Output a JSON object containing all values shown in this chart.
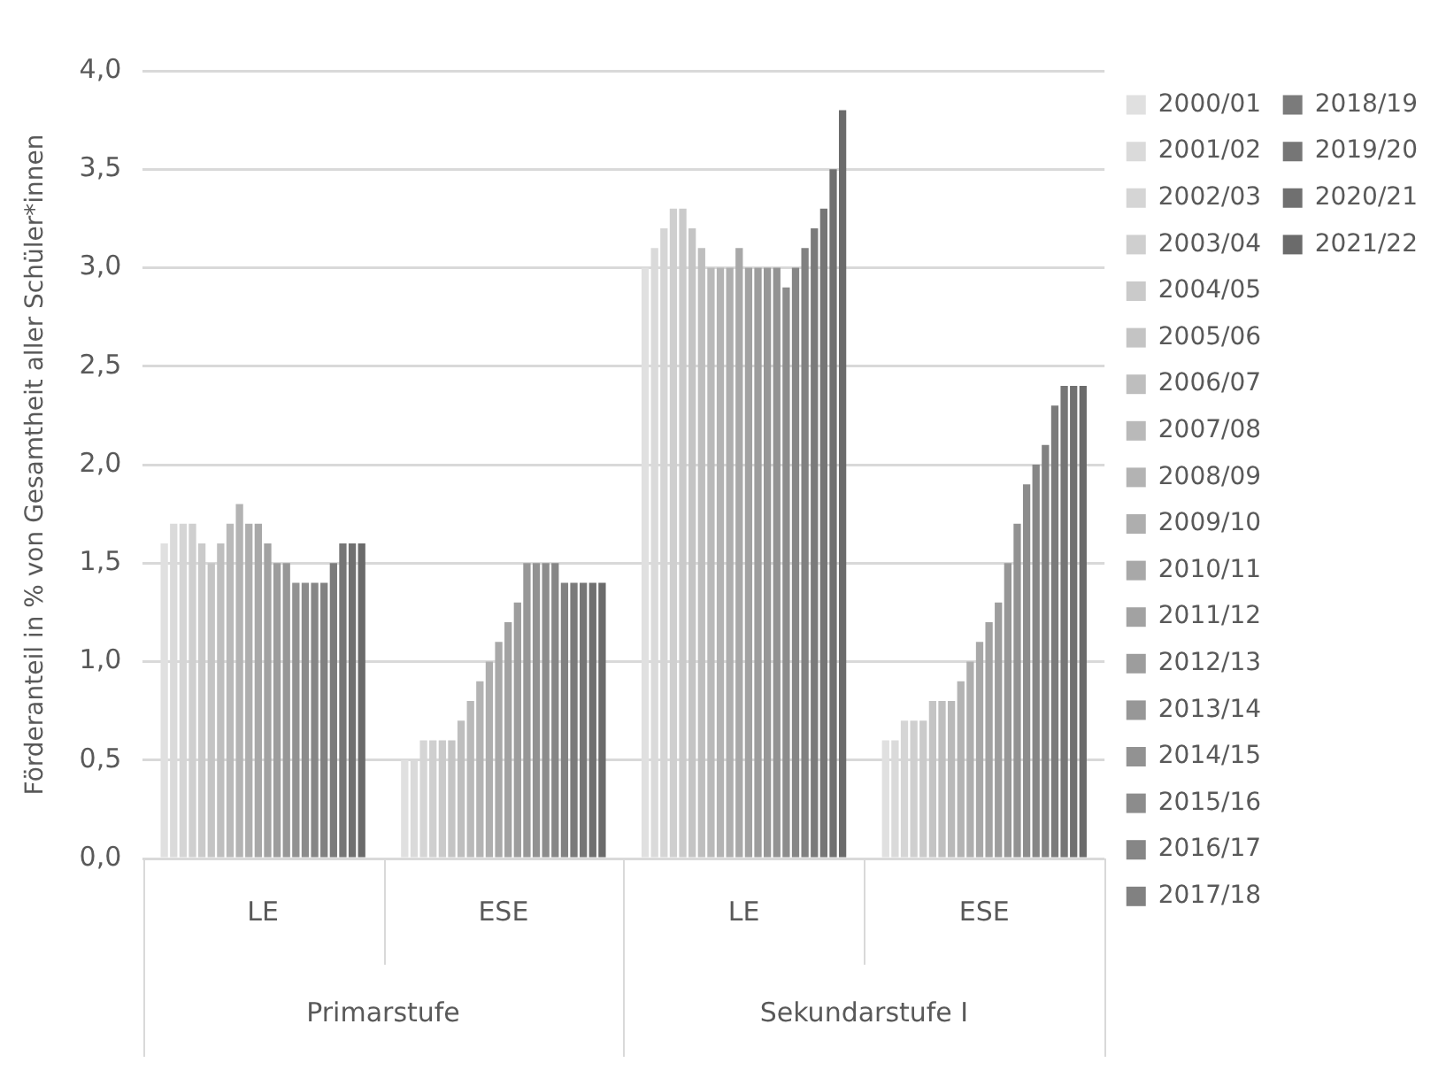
{
  "chart_data": {
    "type": "bar",
    "ylabel": "Förderanteil in % von Gesamtheit aller Schüler*innen",
    "categories": [
      "LE",
      "ESE",
      "LE",
      "ESE"
    ],
    "annotations": [
      "Primarstufe",
      "Sekundarstufe I"
    ],
    "ylim": [
      0,
      4
    ],
    "yticks": [
      {
        "value": 0,
        "label": "0,0"
      },
      {
        "value": 0.5,
        "label": "0,5"
      },
      {
        "value": 1,
        "label": "1,0"
      },
      {
        "value": 1.5,
        "label": "1,5"
      },
      {
        "value": 2,
        "label": "2,0"
      },
      {
        "value": 2.5,
        "label": "2,5"
      },
      {
        "value": 3,
        "label": "3,0"
      },
      {
        "value": 3.5,
        "label": "3,5"
      },
      {
        "value": 4,
        "label": "4,0"
      }
    ],
    "grid": "y",
    "legend": "right",
    "series": [
      {
        "name": "2000/01",
        "color": "#e0e0e0",
        "values": [
          1.6,
          0.5,
          3.0,
          0.6
        ]
      },
      {
        "name": "2001/02",
        "color": "#dadada",
        "values": [
          1.7,
          0.5,
          3.1,
          0.6
        ]
      },
      {
        "name": "2002/03",
        "color": "#d5d5d5",
        "values": [
          1.7,
          0.6,
          3.2,
          0.7
        ]
      },
      {
        "name": "2003/04",
        "color": "#cfcfcf",
        "values": [
          1.7,
          0.6,
          3.3,
          0.7
        ]
      },
      {
        "name": "2004/05",
        "color": "#cacaca",
        "values": [
          1.6,
          0.6,
          3.3,
          0.7
        ]
      },
      {
        "name": "2005/06",
        "color": "#c4c4c4",
        "values": [
          1.5,
          0.6,
          3.2,
          0.8
        ]
      },
      {
        "name": "2006/07",
        "color": "#bebebe",
        "values": [
          1.6,
          0.7,
          3.1,
          0.8
        ]
      },
      {
        "name": "2007/08",
        "color": "#b9b9b9",
        "values": [
          1.7,
          0.8,
          3.0,
          0.8
        ]
      },
      {
        "name": "2008/09",
        "color": "#b3b3b3",
        "values": [
          1.8,
          0.9,
          3.0,
          0.9
        ]
      },
      {
        "name": "2009/10",
        "color": "#aeaeae",
        "values": [
          1.7,
          1.0,
          3.0,
          1.0
        ]
      },
      {
        "name": "2010/11",
        "color": "#a8a8a8",
        "values": [
          1.7,
          1.1,
          3.1,
          1.1
        ]
      },
      {
        "name": "2011/12",
        "color": "#a2a2a2",
        "values": [
          1.6,
          1.2,
          3.0,
          1.2
        ]
      },
      {
        "name": "2012/13",
        "color": "#9d9d9d",
        "values": [
          1.5,
          1.3,
          3.0,
          1.3
        ]
      },
      {
        "name": "2013/14",
        "color": "#979797",
        "values": [
          1.5,
          1.5,
          3.0,
          1.5
        ]
      },
      {
        "name": "2014/15",
        "color": "#929292",
        "values": [
          1.4,
          1.5,
          3.0,
          1.7
        ]
      },
      {
        "name": "2015/16",
        "color": "#8c8c8c",
        "values": [
          1.4,
          1.5,
          2.9,
          1.9
        ]
      },
      {
        "name": "2016/17",
        "color": "#868686",
        "values": [
          1.4,
          1.5,
          3.0,
          2.0
        ]
      },
      {
        "name": "2017/18",
        "color": "#818181",
        "values": [
          1.4,
          1.4,
          3.1,
          2.1
        ]
      },
      {
        "name": "2018/19",
        "color": "#7b7b7b",
        "values": [
          1.5,
          1.4,
          3.2,
          2.3
        ]
      },
      {
        "name": "2019/20",
        "color": "#767676",
        "values": [
          1.6,
          1.4,
          3.3,
          2.4
        ]
      },
      {
        "name": "2020/21",
        "color": "#707070",
        "values": [
          1.6,
          1.4,
          3.5,
          2.4
        ]
      },
      {
        "name": "2021/22",
        "color": "#6b6b6b",
        "values": [
          1.6,
          1.4,
          3.8,
          2.4
        ]
      }
    ]
  }
}
